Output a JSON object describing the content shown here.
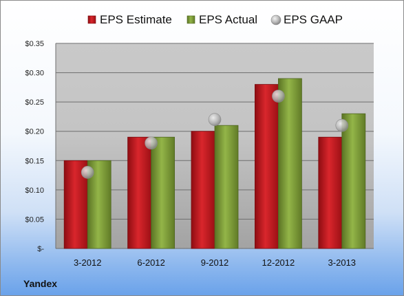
{
  "company": "Yandex",
  "chart_data": {
    "type": "bar",
    "categories": [
      "3-2012",
      "6-2012",
      "9-2012",
      "12-2012",
      "3-2013"
    ],
    "series": [
      {
        "name": "EPS Estimate",
        "type": "bar",
        "color": "#c0161d",
        "values": [
          0.15,
          0.19,
          0.2,
          0.28,
          0.19
        ]
      },
      {
        "name": "EPS Actual",
        "type": "bar",
        "color": "#7c9a35",
        "values": [
          0.15,
          0.19,
          0.21,
          0.29,
          0.23
        ]
      },
      {
        "name": "EPS GAAP",
        "type": "scatter",
        "color": "#a8a8a8",
        "values": [
          0.13,
          0.18,
          0.22,
          0.26,
          0.21
        ]
      }
    ],
    "ylim": [
      0,
      0.35
    ],
    "yticks": [
      0,
      0.05,
      0.1,
      0.15,
      0.2,
      0.25,
      0.3,
      0.35
    ],
    "ytick_labels": [
      "$-",
      "$0.05",
      "$0.10",
      "$0.15",
      "$0.20",
      "$0.25",
      "$0.30",
      "$0.35"
    ],
    "grid": true,
    "legend": "top"
  }
}
